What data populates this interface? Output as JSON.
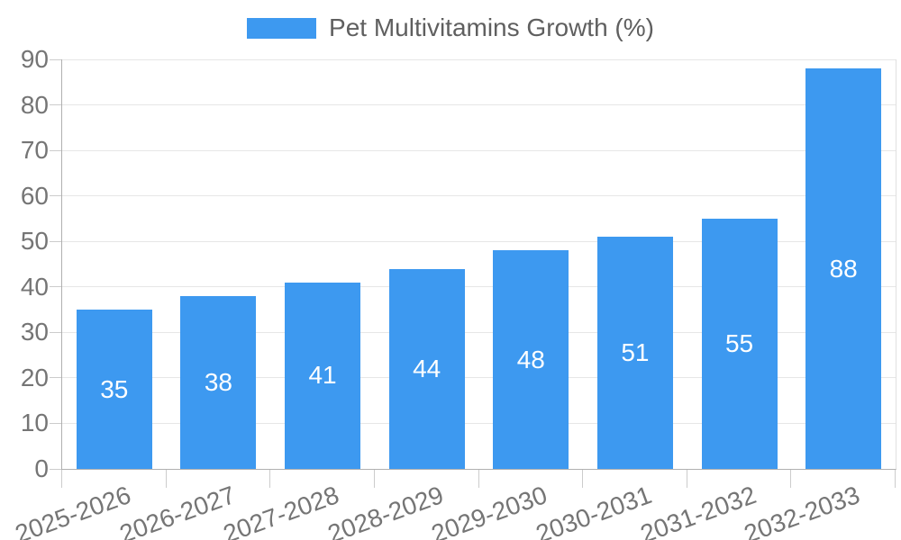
{
  "legend": {
    "label": "Pet Multivitamins Growth (%)"
  },
  "colors": {
    "bar": "#3d99f0",
    "bar_label": "#ffffff",
    "grid": "#e6e6e6",
    "axis_line": "#b0b0b0",
    "right_border": "#e0e0e0",
    "tick": "#cccccc",
    "axis_label": "#757575",
    "legend_text": "#5f5f5f",
    "background": "#ffffff"
  },
  "chart_data": {
    "type": "bar",
    "title": "Pet Multivitamins Growth (%)",
    "categories": [
      "2025-2026",
      "2026-2027",
      "2027-2028",
      "2028-2029",
      "2029-2030",
      "2030-2031",
      "2031-2032",
      "2032-2033"
    ],
    "values": [
      35,
      38,
      41,
      44,
      48,
      51,
      55,
      88
    ],
    "bar_value_labels": [
      "35",
      "38",
      "41",
      "44",
      "48",
      "51",
      "55",
      "88"
    ],
    "xlabel": "",
    "ylabel": "",
    "ylim": [
      0,
      90
    ],
    "ytick_step": 10,
    "yticks": [
      0,
      10,
      20,
      30,
      40,
      50,
      60,
      70,
      80,
      90
    ],
    "grid": "horizontal",
    "legend_position": "top-center",
    "bar_label_position": "inside-center",
    "x_label_rotation_deg": -20
  }
}
